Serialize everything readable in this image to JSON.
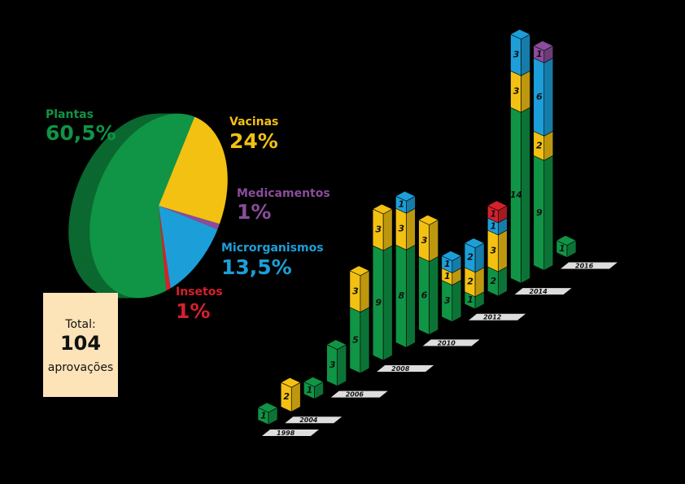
{
  "chart_data": [
    {
      "type": "pie",
      "categories": [
        "Plantas",
        "Vacinas",
        "Medicamentos",
        "Microrganismos",
        "Insetos"
      ],
      "values": [
        60.5,
        24,
        1,
        13.5,
        1
      ],
      "value_labels": [
        "60,5%",
        "24%",
        "1%",
        "13,5%",
        "1%"
      ],
      "colors": [
        "#109445",
        "#f2c112",
        "#8b4c9b",
        "#1c9fd9",
        "#d5212b"
      ],
      "total": {
        "label": "Total:",
        "value": 104,
        "unit": "aprovações"
      }
    },
    {
      "type": "stacked-bar-3d",
      "categories": [
        "1998",
        "2004",
        null,
        "2006",
        null,
        "2008",
        null,
        "2010",
        null,
        "2012",
        null,
        "2014",
        null,
        "2016"
      ],
      "series": [
        {
          "color": "#109445",
          "values": [
            1,
            0,
            1,
            3,
            5,
            9,
            8,
            6,
            3,
            1,
            2,
            14,
            9,
            1
          ]
        },
        {
          "color": "#f2c112",
          "values": [
            0,
            2,
            0,
            0,
            3,
            3,
            3,
            3,
            1,
            2,
            3,
            3,
            2,
            0
          ]
        },
        {
          "color": "#1c9fd9",
          "values": [
            0,
            0,
            0,
            0,
            0,
            0,
            1,
            0,
            1,
            2,
            1,
            3,
            6,
            0
          ]
        },
        {
          "color": "#d5212b",
          "values": [
            0,
            0,
            0,
            0,
            0,
            0,
            0,
            0,
            0,
            0,
            1,
            0,
            0,
            0
          ]
        },
        {
          "color": "#8b4c9b",
          "values": [
            0,
            0,
            0,
            0,
            0,
            0,
            0,
            0,
            0,
            0,
            0,
            0,
            1,
            0
          ]
        }
      ]
    }
  ]
}
